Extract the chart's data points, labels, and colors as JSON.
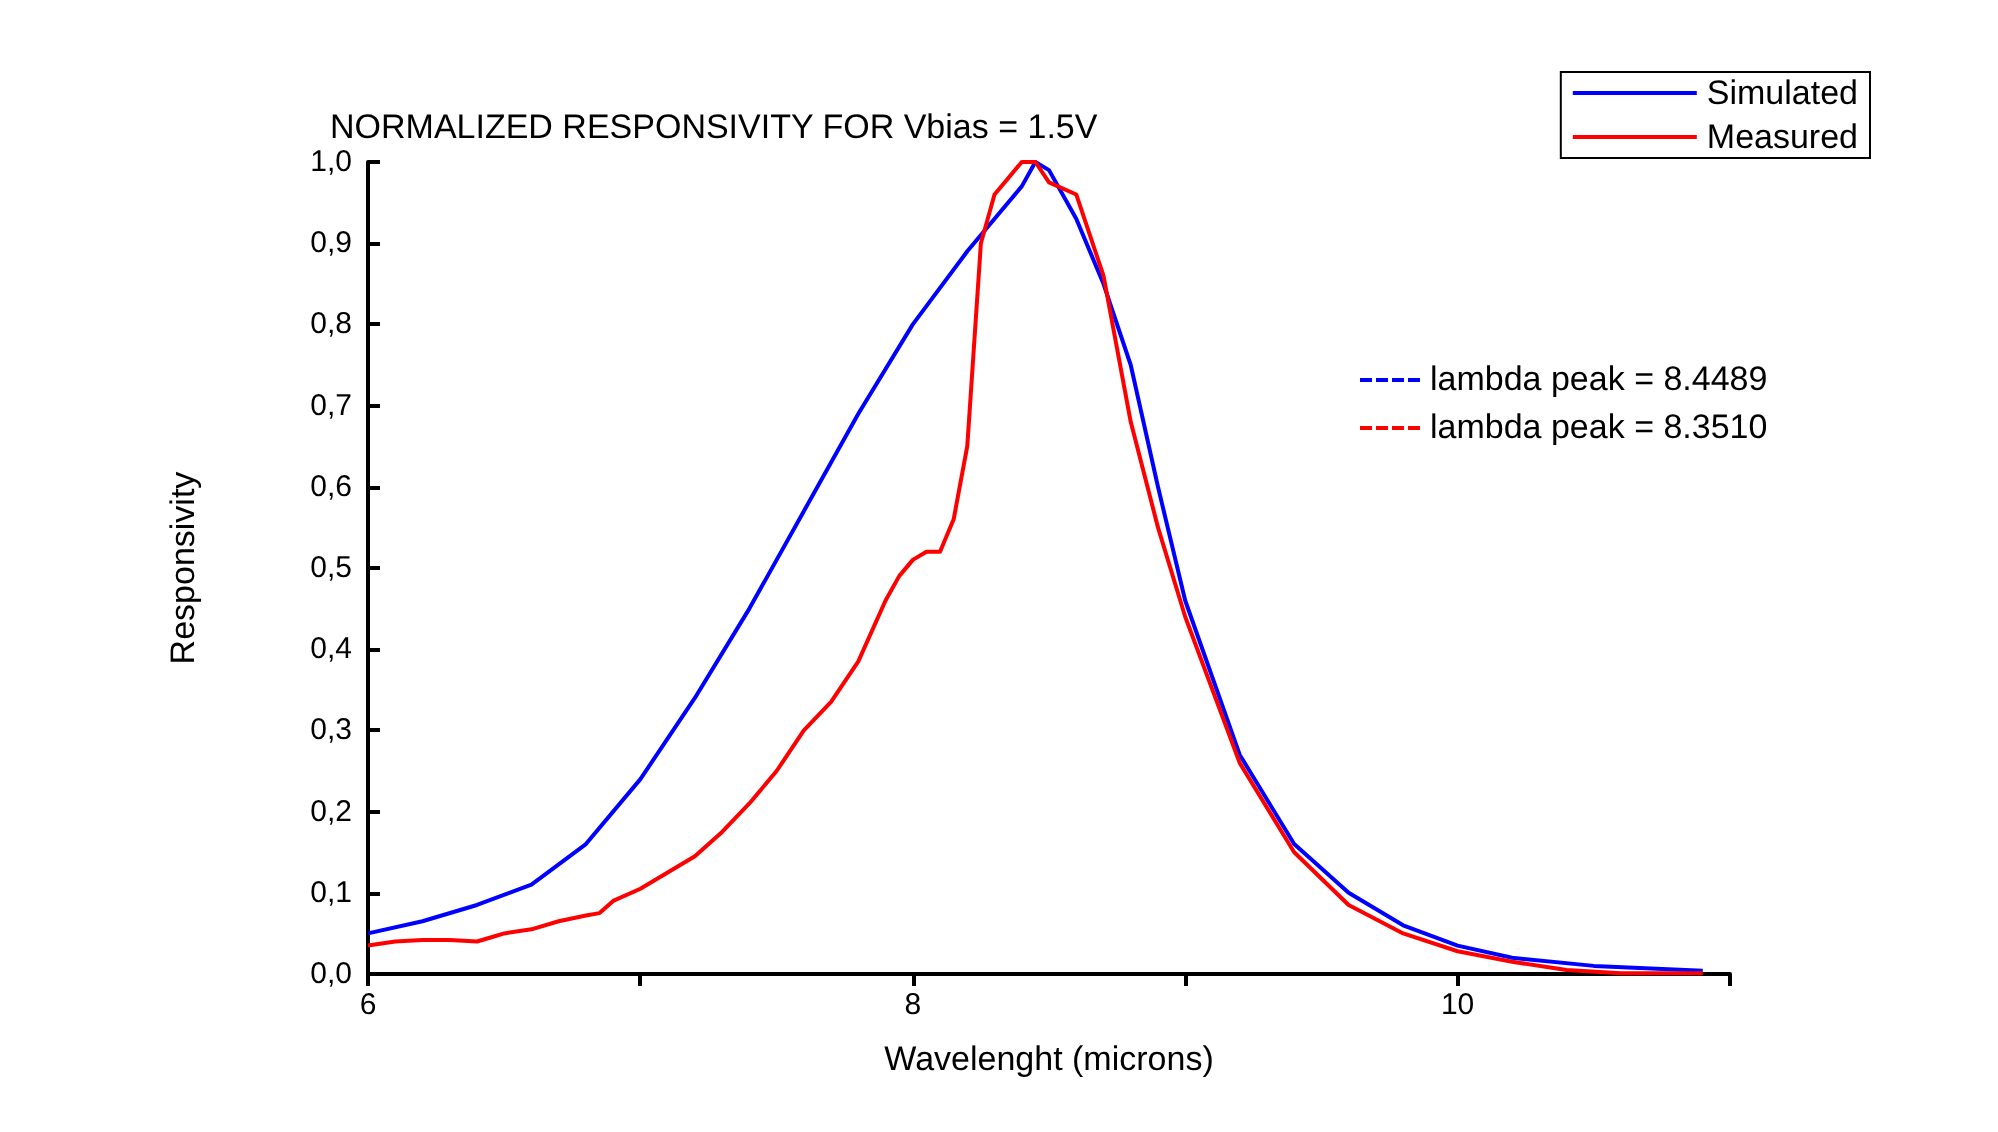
{
  "chart_data": {
    "type": "line",
    "title": "NORMALIZED RESPONSIVITY FOR Vbias = 1.5V",
    "xlabel": "Wavelenght (microns)",
    "ylabel": "Responsivity",
    "annotations": [
      "lambda peak = 8.4489",
      "lambda peak = 8.3510"
    ],
    "xlim": [
      6,
      11
    ],
    "xticks": [
      6,
      {
        "value": 7,
        "label": null
      },
      8,
      {
        "value": 9,
        "label": null
      },
      10,
      {
        "value": 11,
        "label": null
      }
    ],
    "ylim": [
      0,
      1
    ],
    "yticks": [
      {
        "value": 0,
        "label": "0,0"
      },
      {
        "value": 0.1,
        "label": "0,1"
      },
      {
        "value": 0.2,
        "label": "0,2"
      },
      {
        "value": 0.3,
        "label": "0,3"
      },
      {
        "value": 0.4,
        "label": "0,4"
      },
      {
        "value": 0.5,
        "label": "0,5"
      },
      {
        "value": 0.6,
        "label": "0,6"
      },
      {
        "value": 0.7,
        "label": "0,7"
      },
      {
        "value": 0.8,
        "label": "0,8"
      },
      {
        "value": 0.9,
        "label": "0,9"
      },
      {
        "value": 1,
        "label": "1,0"
      }
    ],
    "grid": false,
    "legend": "top right",
    "marker": "none",
    "line_style": "solid",
    "series": [
      {
        "name": "Simulated",
        "color": "#0000ff",
        "x": [
          6,
          6.2,
          6.4,
          6.6,
          6.8,
          7,
          7.2,
          7.4,
          7.6,
          7.8,
          8,
          8.2,
          8.4,
          8.45,
          8.5,
          8.6,
          8.7,
          8.8,
          8.9,
          9,
          9.2,
          9.4,
          9.6,
          9.8,
          10,
          10.2,
          10.5,
          10.9
        ],
        "values": [
          0.05,
          0.065,
          0.085,
          0.11,
          0.16,
          0.24,
          0.34,
          0.45,
          0.57,
          0.69,
          0.8,
          0.89,
          0.97,
          1,
          0.99,
          0.93,
          0.85,
          0.75,
          0.6,
          0.46,
          0.27,
          0.16,
          0.1,
          0.06,
          0.035,
          0.02,
          0.01,
          0.004
        ]
      },
      {
        "name": "Measured",
        "color": "#ff0000",
        "x": [
          6,
          6.1,
          6.2,
          6.3,
          6.4,
          6.45,
          6.5,
          6.6,
          6.7,
          6.8,
          6.85,
          6.9,
          7,
          7.1,
          7.2,
          7.3,
          7.4,
          7.5,
          7.6,
          7.7,
          7.8,
          7.9,
          7.95,
          8,
          8.05,
          8.1,
          8.15,
          8.2,
          8.25,
          8.3,
          8.35,
          8.4,
          8.45,
          8.5,
          8.6,
          8.7,
          8.8,
          8.9,
          9,
          9.2,
          9.4,
          9.6,
          9.8,
          10,
          10.2,
          10.4,
          10.6,
          10.9
        ],
        "values": [
          0.035,
          0.04,
          0.042,
          0.042,
          0.04,
          0.045,
          0.05,
          0.055,
          0.065,
          0.072,
          0.075,
          0.09,
          0.105,
          0.125,
          0.145,
          0.175,
          0.21,
          0.25,
          0.3,
          0.335,
          0.385,
          0.46,
          0.49,
          0.51,
          0.52,
          0.52,
          0.56,
          0.65,
          0.9,
          0.96,
          0.98,
          1,
          1,
          0.975,
          0.96,
          0.86,
          0.68,
          0.55,
          0.44,
          0.26,
          0.15,
          0.085,
          0.05,
          0.028,
          0.015,
          0.005,
          0.001,
          0.001
        ]
      }
    ]
  }
}
